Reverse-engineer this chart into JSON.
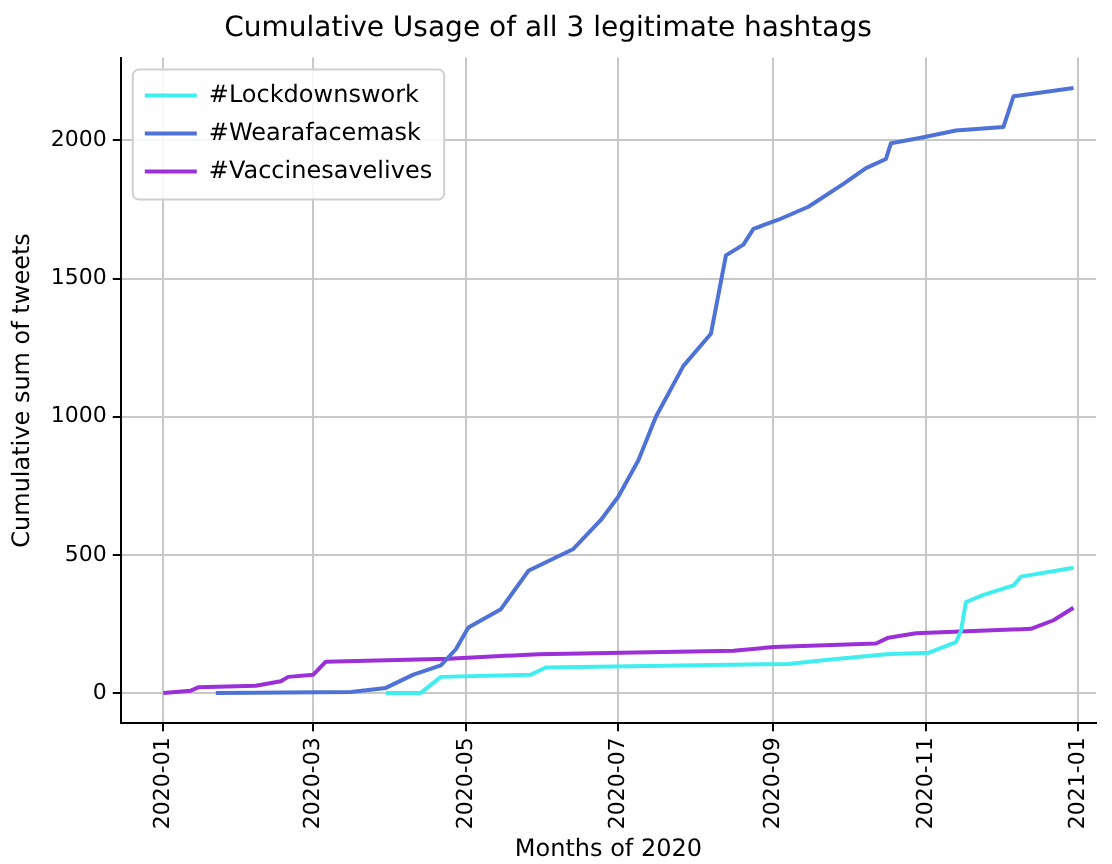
{
  "chart_data": {
    "type": "line",
    "title": "Cumulative Usage of all 3 legitimate hashtags",
    "xlabel": "Months of 2020",
    "ylabel": "Cumulative sum of tweets",
    "series": [
      {
        "name": "#Lockdownswork",
        "color": "#40eef0",
        "x": [
          "2020-03-30",
          "2020-04-13",
          "2020-04-21",
          "2020-05-27",
          "2020-06-02",
          "2020-09-07",
          "2020-09-21",
          "2020-10-16",
          "2020-11-02",
          "2020-11-13",
          "2020-11-15",
          "2020-11-17",
          "2020-11-24",
          "2020-12-06",
          "2020-12-09",
          "2020-12-30"
        ],
        "values": [
          0,
          0,
          58,
          66,
          92,
          105,
          118,
          140,
          145,
          184,
          224,
          329,
          355,
          389,
          421,
          453
        ]
      },
      {
        "name": "#Wearafacemask",
        "color": "#4f72d6",
        "x": [
          "2020-01-22",
          "2020-03-16",
          "2020-03-30",
          "2020-04-10",
          "2020-04-21",
          "2020-04-27",
          "2020-05-02",
          "2020-05-15",
          "2020-05-26",
          "2020-06-13",
          "2020-06-24",
          "2020-07-01",
          "2020-07-09",
          "2020-07-16",
          "2020-07-27",
          "2020-08-07",
          "2020-08-13",
          "2020-08-20",
          "2020-08-24",
          "2020-09-03",
          "2020-09-15",
          "2020-09-29",
          "2020-10-08",
          "2020-10-16",
          "2020-10-18",
          "2020-10-30",
          "2020-11-13",
          "2020-12-02",
          "2020-12-06",
          "2020-12-30"
        ],
        "values": [
          0,
          3,
          18,
          66,
          100,
          158,
          237,
          303,
          442,
          521,
          626,
          711,
          842,
          1000,
          1184,
          1300,
          1584,
          1623,
          1680,
          1713,
          1760,
          1843,
          1900,
          1933,
          1990,
          2010,
          2036,
          2049,
          2160,
          2190
        ]
      },
      {
        "name": "#Vaccinesavelives",
        "color": "#9b30d9",
        "x": [
          "2020-01-01",
          "2020-01-12",
          "2020-01-15",
          "2020-02-07",
          "2020-02-17",
          "2020-02-20",
          "2020-03-01",
          "2020-03-06",
          "2020-04-24",
          "2020-05-30",
          "2020-08-16",
          "2020-09-01",
          "2020-10-12",
          "2020-10-17",
          "2020-10-28",
          "2020-12-13",
          "2020-12-22",
          "2020-12-30"
        ],
        "values": [
          0,
          8,
          20,
          26,
          42,
          58,
          66,
          113,
          124,
          140,
          153,
          166,
          179,
          200,
          216,
          232,
          263,
          308
        ]
      }
    ],
    "xlim": [
      "2019-12-15",
      "2021-01-08"
    ],
    "xticks": [
      "2020-01",
      "2020-03",
      "2020-05",
      "2020-07",
      "2020-09",
      "2020-11",
      "2021-01"
    ],
    "ylim": [
      -110,
      2300
    ],
    "yticks": [
      0,
      500,
      1000,
      1500,
      2000
    ],
    "grid": true,
    "legend": "top left",
    "line_style": "solid",
    "marker": "none"
  }
}
